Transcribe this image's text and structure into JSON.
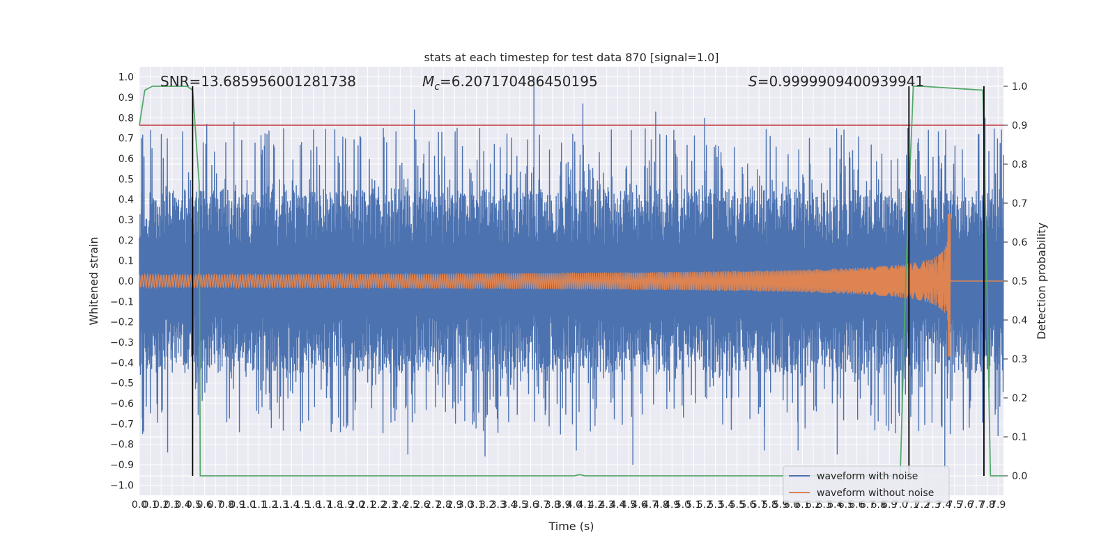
{
  "chart_data": {
    "type": "line",
    "title": "stats at each timestep for test data 870 [signal=1.0]",
    "xlabel": "Time (s)",
    "ylabel_left": "Whitened strain",
    "ylabel_right": "Detection probability",
    "xlim": [
      0.0,
      7.95
    ],
    "ylim_left": [
      -1.05,
      1.05
    ],
    "ylim_right": [
      -0.05,
      1.05
    ],
    "x_ticks": [
      "0.0",
      "0.1",
      "0.2",
      "0.3",
      "0.4",
      "0.5",
      "0.6",
      "0.7",
      "0.8",
      "0.9",
      "1.0",
      "1.1",
      "1.2",
      "1.3",
      "1.4",
      "1.5",
      "1.6",
      "1.7",
      "1.8",
      "1.9",
      "2.0",
      "2.1",
      "2.2",
      "2.3",
      "2.4",
      "2.5",
      "2.6",
      "2.7",
      "2.8",
      "2.9",
      "3.0",
      "3.1",
      "3.2",
      "3.3",
      "3.4",
      "3.5",
      "3.6",
      "3.7",
      "3.8",
      "3.9",
      "4.0",
      "4.1",
      "4.2",
      "4.3",
      "4.4",
      "4.5",
      "4.6",
      "4.7",
      "4.8",
      "4.9",
      "5.0",
      "5.1",
      "5.2",
      "5.3",
      "5.4",
      "5.5",
      "5.6",
      "5.7",
      "5.8",
      "5.9",
      "6.0",
      "6.1",
      "6.2",
      "6.3",
      "6.4",
      "6.5",
      "6.6",
      "6.7",
      "6.8",
      "6.9",
      "7.0",
      "7.1",
      "7.2",
      "7.3",
      "7.4",
      "7.5",
      "7.6",
      "7.7",
      "7.8",
      "7.9"
    ],
    "y_ticks_left": [
      "-1.0",
      "-0.9",
      "-0.8",
      "-0.7",
      "-0.6",
      "-0.5",
      "-0.4",
      "-0.3",
      "-0.2",
      "-0.1",
      "0.0",
      "0.1",
      "0.2",
      "0.3",
      "0.4",
      "0.5",
      "0.6",
      "0.7",
      "0.8",
      "0.9",
      "1.0"
    ],
    "y_ticks_right": [
      "0.0",
      "0.1",
      "0.2",
      "0.3",
      "0.4",
      "0.5",
      "0.6",
      "0.7",
      "0.8",
      "0.9",
      "1.0"
    ],
    "annotations": [
      {
        "text": "SNR=13.685956001281738"
      },
      {
        "text": "=6.207170486450195",
        "symbol": "M",
        "subscript": "c"
      },
      {
        "text": "=0.9999909400939941",
        "symbol": "S"
      }
    ],
    "threshold_line": {
      "axis": "right",
      "y": 0.9,
      "color": "#c44e52"
    },
    "vertical_lines": [
      0.49,
      7.08,
      7.77
    ],
    "series": [
      {
        "name": "waveform with noise",
        "color": "#4c72b0",
        "axis": "left",
        "x_range": [
          0.0,
          7.95
        ],
        "envelope": 0.45,
        "peaks": [
          {
            "x": 0.02,
            "y": 0.7
          },
          {
            "x": 0.03,
            "y": -0.75
          },
          {
            "x": 0.26,
            "y": -0.84
          },
          {
            "x": 0.62,
            "y": 0.77
          },
          {
            "x": 0.87,
            "y": 0.78
          },
          {
            "x": 2.47,
            "y": -0.85
          },
          {
            "x": 2.53,
            "y": 0.84
          },
          {
            "x": 3.18,
            "y": -0.86
          },
          {
            "x": 3.63,
            "y": 0.99
          },
          {
            "x": 4.02,
            "y": -0.83
          },
          {
            "x": 4.08,
            "y": 0.87
          },
          {
            "x": 4.54,
            "y": -0.9
          },
          {
            "x": 4.75,
            "y": 0.83
          },
          {
            "x": 5.2,
            "y": 0.8
          },
          {
            "x": 5.75,
            "y": -0.83
          },
          {
            "x": 6.06,
            "y": -0.83
          },
          {
            "x": 6.42,
            "y": -0.85
          },
          {
            "x": 7.07,
            "y": 0.75
          },
          {
            "x": 7.41,
            "y": -0.92
          },
          {
            "x": 7.46,
            "y": -0.75
          },
          {
            "x": 7.78,
            "y": 0.8
          },
          {
            "x": 7.9,
            "y": -0.76
          }
        ]
      },
      {
        "name": "waveform without noise",
        "color": "#dd8452",
        "axis": "left",
        "chirp_start": 0.0,
        "chirp_end": 7.46,
        "start_amplitude": 0.03,
        "end_amplitude": 0.33,
        "end_min": -0.37,
        "flat_after": 7.46,
        "flat_until": 7.95
      },
      {
        "name": "detection probability",
        "color": "#55a868",
        "axis": "right",
        "x": [
          0.0,
          0.05,
          0.12,
          0.44,
          0.49,
          0.55,
          0.56,
          0.6,
          4.0,
          4.05,
          4.1,
          4.2,
          6.7,
          7.0,
          7.05,
          7.12,
          7.2,
          7.76,
          7.78,
          7.83,
          7.88,
          7.95
        ],
        "y": [
          0.9,
          0.99,
          1.0,
          1.0,
          0.99,
          0.75,
          0.0,
          0.0,
          0.0,
          0.003,
          0.0,
          0.0,
          0.0,
          0.0,
          0.5,
          1.0,
          1.0,
          0.99,
          0.75,
          0.0,
          0.0,
          0.0
        ]
      }
    ],
    "legend": {
      "placement": "lower-right",
      "entries": [
        {
          "label": "waveform with noise",
          "color": "#4c72b0"
        },
        {
          "label": "waveform without noise",
          "color": "#dd8452"
        }
      ]
    },
    "grid": true,
    "background": "#eaeaf2"
  }
}
